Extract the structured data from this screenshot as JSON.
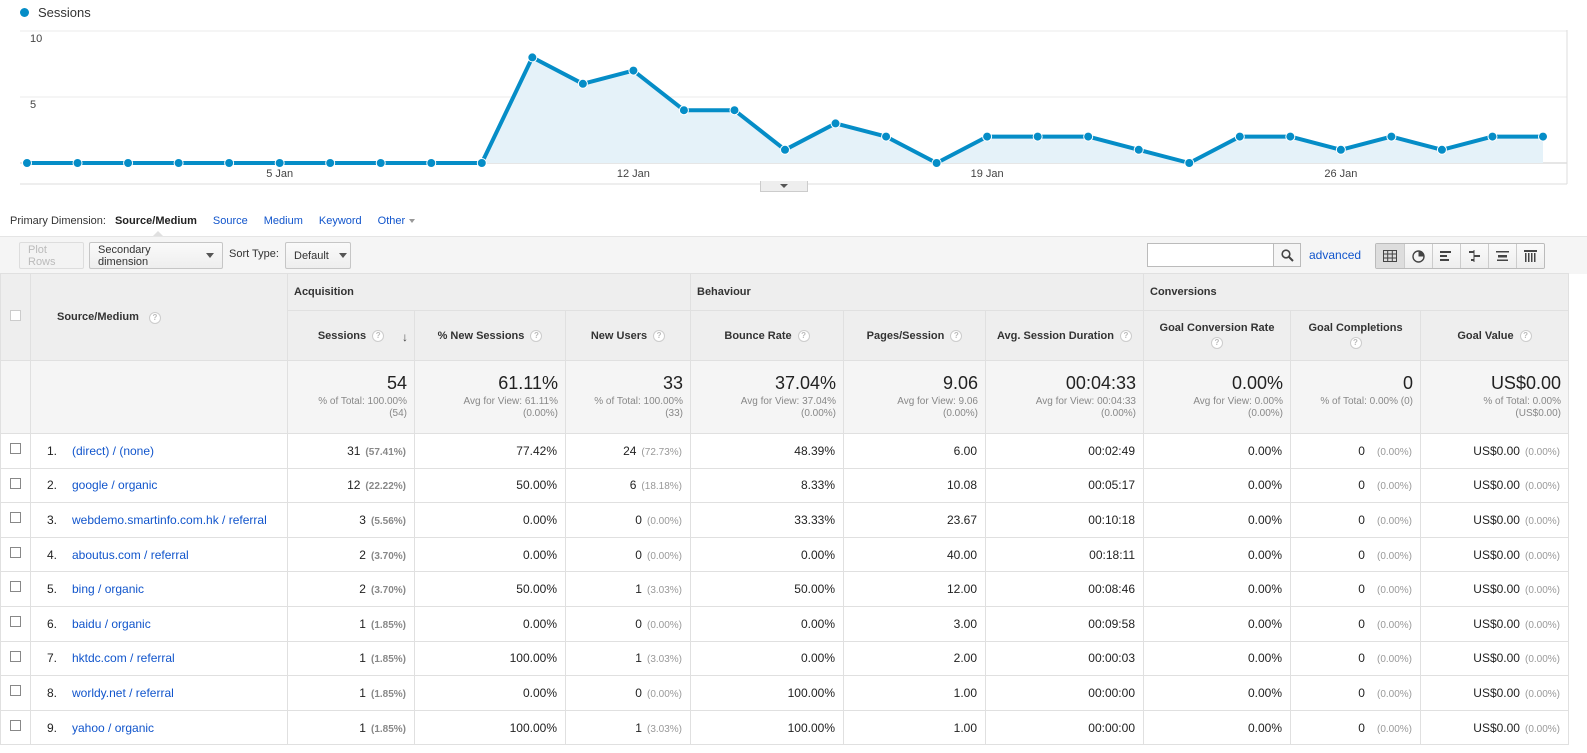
{
  "legend": {
    "label": "Sessions",
    "color": "#058dc7"
  },
  "chart_data": {
    "type": "line",
    "series": [
      {
        "name": "Sessions",
        "values": [
          0,
          0,
          0,
          0,
          0,
          0,
          0,
          0,
          0,
          0,
          8,
          6,
          7,
          4,
          4,
          1,
          3,
          2,
          0,
          2,
          2,
          2,
          1,
          0,
          2,
          2,
          1,
          2,
          1,
          2,
          2
        ]
      }
    ],
    "y_ticks": [
      "10",
      "5"
    ],
    "ylim": [
      0,
      10
    ],
    "x_ticks": [
      {
        "index": 5,
        "label": "5 Jan"
      },
      {
        "index": 12,
        "label": "12 Jan"
      },
      {
        "index": 19,
        "label": "19 Jan"
      },
      {
        "index": 26,
        "label": "26 Jan"
      }
    ],
    "area_fill": true,
    "grid": true
  },
  "primary_dimension": {
    "label": "Primary Dimension:",
    "current": "Source/Medium",
    "options": [
      "Source",
      "Medium",
      "Keyword"
    ],
    "other": "Other"
  },
  "toolbar": {
    "plot_rows": "Plot Rows",
    "secondary_dimension": "Secondary dimension",
    "sort_type_label": "Sort Type:",
    "sort_type_value": "Default",
    "search_value": "",
    "advanced": "advanced"
  },
  "table": {
    "dimension_header": "Source/Medium",
    "groups": [
      "Acquisition",
      "Behaviour",
      "Conversions"
    ],
    "columns": [
      "Sessions",
      "% New Sessions",
      "New Users",
      "Bounce Rate",
      "Pages/Session",
      "Avg. Session Duration",
      "Goal Conversion Rate",
      "Goal Completions",
      "Goal Value"
    ],
    "totals": [
      {
        "value": "54",
        "l1": "% of Total: 100.00%",
        "l2": "(54)"
      },
      {
        "value": "61.11%",
        "l1": "Avg for View: 61.11%",
        "l2": "(0.00%)"
      },
      {
        "value": "33",
        "l1": "% of Total: 100.00%",
        "l2": "(33)"
      },
      {
        "value": "37.04%",
        "l1": "Avg for View: 37.04%",
        "l2": "(0.00%)"
      },
      {
        "value": "9.06",
        "l1": "Avg for View: 9.06",
        "l2": "(0.00%)"
      },
      {
        "value": "00:04:33",
        "l1": "Avg for View: 00:04:33",
        "l2": "(0.00%)"
      },
      {
        "value": "0.00%",
        "l1": "Avg for View: 0.00%",
        "l2": "(0.00%)"
      },
      {
        "value": "0",
        "l1": "% of Total: 0.00% (0)",
        "l2": ""
      },
      {
        "value": "US$0.00",
        "l1": "% of Total: 0.00%",
        "l2": "(US$0.00)"
      }
    ],
    "rows": [
      {
        "num": "1.",
        "source": "(direct) / (none)",
        "sessions": "31",
        "sessions_pct": "(57.41%)",
        "new_sessions": "77.42%",
        "new_users": "24",
        "new_users_pct": "(72.73%)",
        "bounce": "48.39%",
        "pages": "6.00",
        "duration": "00:02:49",
        "conv_rate": "0.00%",
        "completions": "0",
        "completions_pct": "(0.00%)",
        "goal_value": "US$0.00",
        "goal_value_pct": "(0.00%)"
      },
      {
        "num": "2.",
        "source": "google / organic",
        "sessions": "12",
        "sessions_pct": "(22.22%)",
        "new_sessions": "50.00%",
        "new_users": "6",
        "new_users_pct": "(18.18%)",
        "bounce": "8.33%",
        "pages": "10.08",
        "duration": "00:05:17",
        "conv_rate": "0.00%",
        "completions": "0",
        "completions_pct": "(0.00%)",
        "goal_value": "US$0.00",
        "goal_value_pct": "(0.00%)"
      },
      {
        "num": "3.",
        "source": "webdemo.smartinfo.com.hk / referral",
        "sessions": "3",
        "sessions_pct": "(5.56%)",
        "new_sessions": "0.00%",
        "new_users": "0",
        "new_users_pct": "(0.00%)",
        "bounce": "33.33%",
        "pages": "23.67",
        "duration": "00:10:18",
        "conv_rate": "0.00%",
        "completions": "0",
        "completions_pct": "(0.00%)",
        "goal_value": "US$0.00",
        "goal_value_pct": "(0.00%)"
      },
      {
        "num": "4.",
        "source": "aboutus.com / referral",
        "sessions": "2",
        "sessions_pct": "(3.70%)",
        "new_sessions": "0.00%",
        "new_users": "0",
        "new_users_pct": "(0.00%)",
        "bounce": "0.00%",
        "pages": "40.00",
        "duration": "00:18:11",
        "conv_rate": "0.00%",
        "completions": "0",
        "completions_pct": "(0.00%)",
        "goal_value": "US$0.00",
        "goal_value_pct": "(0.00%)"
      },
      {
        "num": "5.",
        "source": "bing / organic",
        "sessions": "2",
        "sessions_pct": "(3.70%)",
        "new_sessions": "50.00%",
        "new_users": "1",
        "new_users_pct": "(3.03%)",
        "bounce": "50.00%",
        "pages": "12.00",
        "duration": "00:08:46",
        "conv_rate": "0.00%",
        "completions": "0",
        "completions_pct": "(0.00%)",
        "goal_value": "US$0.00",
        "goal_value_pct": "(0.00%)"
      },
      {
        "num": "6.",
        "source": "baidu / organic",
        "sessions": "1",
        "sessions_pct": "(1.85%)",
        "new_sessions": "0.00%",
        "new_users": "0",
        "new_users_pct": "(0.00%)",
        "bounce": "0.00%",
        "pages": "3.00",
        "duration": "00:09:58",
        "conv_rate": "0.00%",
        "completions": "0",
        "completions_pct": "(0.00%)",
        "goal_value": "US$0.00",
        "goal_value_pct": "(0.00%)"
      },
      {
        "num": "7.",
        "source": "hktdc.com / referral",
        "sessions": "1",
        "sessions_pct": "(1.85%)",
        "new_sessions": "100.00%",
        "new_users": "1",
        "new_users_pct": "(3.03%)",
        "bounce": "0.00%",
        "pages": "2.00",
        "duration": "00:00:03",
        "conv_rate": "0.00%",
        "completions": "0",
        "completions_pct": "(0.00%)",
        "goal_value": "US$0.00",
        "goal_value_pct": "(0.00%)"
      },
      {
        "num": "8.",
        "source": "worldy.net / referral",
        "sessions": "1",
        "sessions_pct": "(1.85%)",
        "new_sessions": "0.00%",
        "new_users": "0",
        "new_users_pct": "(0.00%)",
        "bounce": "100.00%",
        "pages": "1.00",
        "duration": "00:00:00",
        "conv_rate": "0.00%",
        "completions": "0",
        "completions_pct": "(0.00%)",
        "goal_value": "US$0.00",
        "goal_value_pct": "(0.00%)"
      },
      {
        "num": "9.",
        "source": "yahoo / organic",
        "sessions": "1",
        "sessions_pct": "(1.85%)",
        "new_sessions": "100.00%",
        "new_users": "1",
        "new_users_pct": "(3.03%)",
        "bounce": "100.00%",
        "pages": "1.00",
        "duration": "00:00:00",
        "conv_rate": "0.00%",
        "completions": "0",
        "completions_pct": "(0.00%)",
        "goal_value": "US$0.00",
        "goal_value_pct": "(0.00%)"
      }
    ]
  }
}
